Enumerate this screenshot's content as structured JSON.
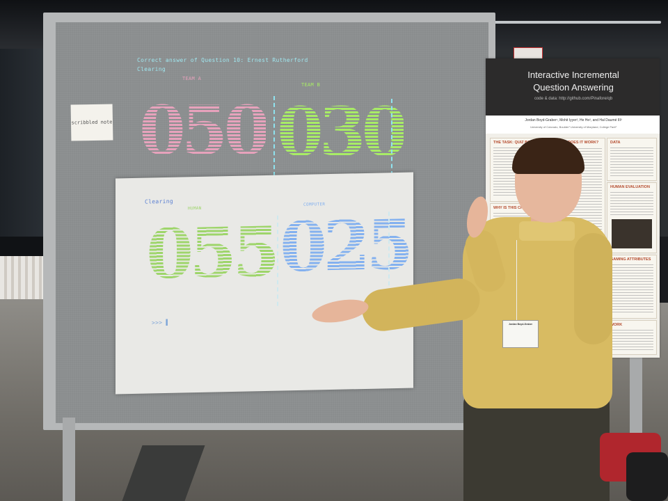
{
  "top_display": {
    "answer_line": "Correct answer of Question 10: Ernest Rutherford",
    "status": "Clearing",
    "team_a_label": "TEAM A",
    "team_b_label": "TEAM B",
    "team_a_score": "050",
    "team_b_score": "030"
  },
  "bottom_display": {
    "status": "Clearing",
    "human_label": "HUMAN",
    "computer_label": "COMPUTER",
    "human_score": "055",
    "computer_score": "025",
    "prompt": ">>> ▌"
  },
  "poster": {
    "title_line1": "Interactive Incremental",
    "title_line2": "Question Answering",
    "url": "code & data: http://github.com/Pinafore/qb",
    "authors": "Jordan Boyd-Graber¹, Mohit Iyyer², He He², and Hal Daumé III²",
    "affiliations": "University of Colorado, Boulder¹   University of Maryland, College Park²",
    "sections": [
      "THE TASK: QUIZ BOWL",
      "HOW DOES IT WORK?",
      "DATA",
      "HUMAN EVALUATION",
      "WHY IS THIS CHALLENGING?",
      "GAMING ATTRIBUTES",
      "FUTURE WORK"
    ]
  },
  "badge": {
    "name": "Jordan Boyd-Graber"
  },
  "colors": {
    "team_a": "#e7a2bc",
    "team_b": "#a8ec66",
    "human": "#9ed56b",
    "computer": "#84b1ef",
    "header_text": "#9fe6ef",
    "divider": "#8fe3ef"
  }
}
